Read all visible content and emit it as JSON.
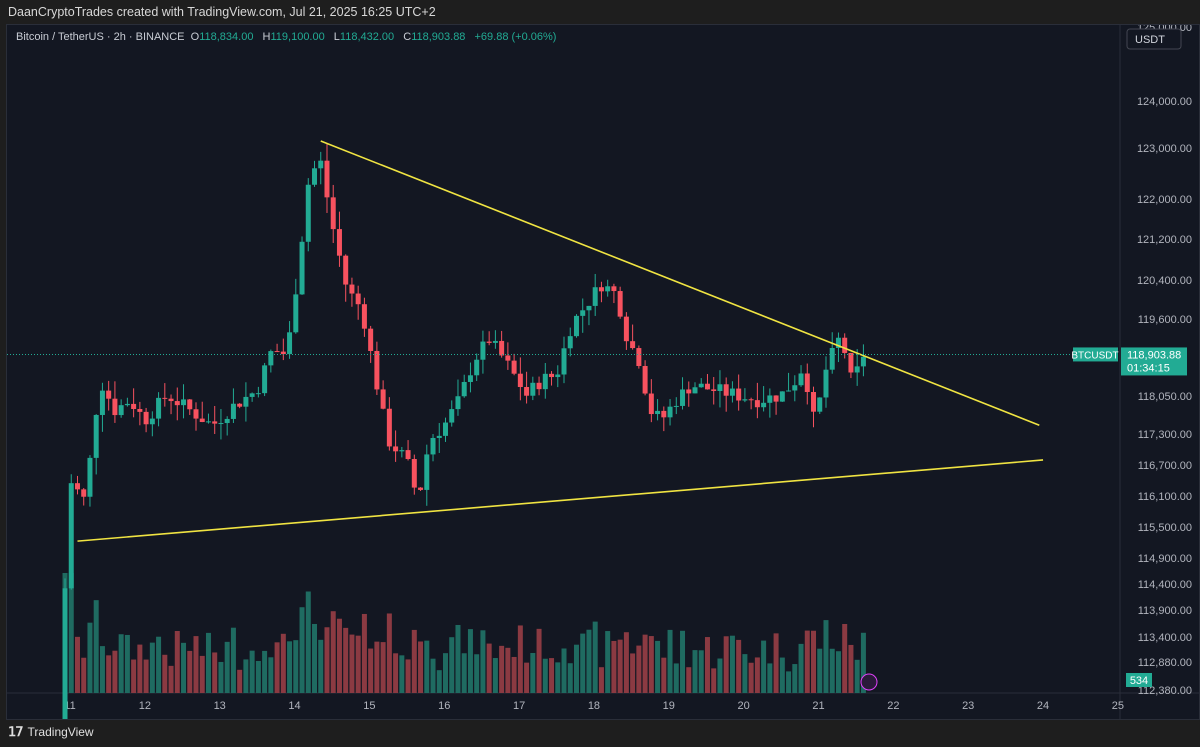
{
  "header": {
    "caption": "DaanCryptoTrades created with TradingView.com, Jul 21, 2025 16:25 UTC+2"
  },
  "legend": {
    "symbol": "Bitcoin / TetherUS · 2h · BINANCE",
    "o_label": "O",
    "o": "118,834.00",
    "h_label": "H",
    "h": "119,100.00",
    "l_label": "L",
    "l": "118,432.00",
    "c_label": "C",
    "c": "118,903.88",
    "change": "+69.88 (+0.06%)"
  },
  "currency_button": "USDT",
  "price_tag": {
    "symbol": "BTCUSDT",
    "price": "118,903.88",
    "countdown": "01:34:15"
  },
  "volume_tag": "534",
  "footer": {
    "brand": "TradingView"
  },
  "colors": {
    "up": "#22ab94",
    "down": "#f7525f",
    "trendline": "#f0e442",
    "background": "#131722"
  },
  "chart_data": {
    "type": "candlestick",
    "interval": "2h",
    "price_axis_labels": [
      "125,000.00",
      "124,000.00",
      "123,000.00",
      "122,000.00",
      "121,200.00",
      "120,400.00",
      "119,600.00",
      "118,050.00",
      "117,300.00",
      "116,700.00",
      "116,100.00",
      "115,500.00",
      "114,900.00",
      "114,400.00",
      "113,900.00",
      "113,400.00",
      "112,880.00",
      "112,380.00"
    ],
    "time_axis_labels": [
      "11",
      "12",
      "13",
      "14",
      "15",
      "16",
      "17",
      "18",
      "19",
      "20",
      "21",
      "22",
      "23",
      "24",
      "25"
    ],
    "last_price": 118903.88,
    "approx_close_path": [
      [
        10.9,
        113200
      ],
      [
        11.0,
        116400
      ],
      [
        11.2,
        116000
      ],
      [
        11.4,
        118400
      ],
      [
        11.6,
        117800
      ],
      [
        11.8,
        118000
      ],
      [
        12.0,
        117600
      ],
      [
        12.3,
        118100
      ],
      [
        12.6,
        117800
      ],
      [
        12.9,
        117500
      ],
      [
        13.2,
        117900
      ],
      [
        13.5,
        118200
      ],
      [
        13.7,
        119000
      ],
      [
        13.9,
        118900
      ],
      [
        14.05,
        120600
      ],
      [
        14.2,
        122500
      ],
      [
        14.35,
        122700
      ],
      [
        14.5,
        121500
      ],
      [
        14.7,
        120200
      ],
      [
        14.9,
        119800
      ],
      [
        15.1,
        118300
      ],
      [
        15.25,
        117200
      ],
      [
        15.5,
        116800
      ],
      [
        15.65,
        116000
      ],
      [
        15.8,
        117200
      ],
      [
        16.0,
        117500
      ],
      [
        16.2,
        118000
      ],
      [
        16.4,
        118800
      ],
      [
        16.6,
        119200
      ],
      [
        16.8,
        118800
      ],
      [
        17.1,
        118100
      ],
      [
        17.3,
        118400
      ],
      [
        17.5,
        118500
      ],
      [
        17.7,
        119500
      ],
      [
        17.9,
        119900
      ],
      [
        18.1,
        120300
      ],
      [
        18.3,
        120100
      ],
      [
        18.45,
        119200
      ],
      [
        18.6,
        118800
      ],
      [
        18.75,
        117800
      ],
      [
        18.9,
        117600
      ],
      [
        19.1,
        118000
      ],
      [
        19.3,
        118300
      ],
      [
        19.6,
        118200
      ],
      [
        19.9,
        118100
      ],
      [
        20.2,
        118000
      ],
      [
        20.5,
        118100
      ],
      [
        20.7,
        118400
      ],
      [
        20.8,
        118700
      ],
      [
        20.95,
        117500
      ],
      [
        21.1,
        118600
      ],
      [
        21.3,
        119300
      ],
      [
        21.45,
        118300
      ],
      [
        21.6,
        118903.88
      ]
    ],
    "trendlines": [
      {
        "from": [
          14.35,
          123140
        ],
        "to": [
          23.95,
          117500
        ]
      },
      {
        "from": [
          11.1,
          115200
        ],
        "to": [
          24.0,
          116810
        ]
      }
    ]
  }
}
